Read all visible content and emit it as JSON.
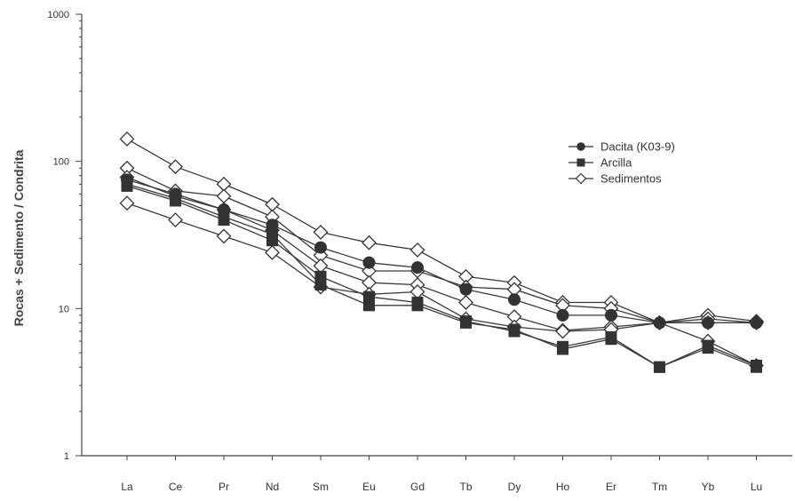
{
  "chart_data": {
    "type": "line",
    "title": "",
    "xlabel": "",
    "ylabel": "Rocas + Sedimento / Condrita",
    "yscale": "log",
    "ylim": [
      1,
      1000
    ],
    "yticks": [
      "1",
      "10",
      "100",
      "1000"
    ],
    "categories": [
      "La",
      "Ce",
      "Pr",
      "Nd",
      "Sm",
      "Eu",
      "Gd",
      "Tb",
      "Dy",
      "Ho",
      "Er",
      "Tm",
      "Yb",
      "Lu"
    ],
    "legend_position": "top-right",
    "grid": false,
    "legend": [
      {
        "label": "Dacita (K03-9)",
        "marker": "circle-filled"
      },
      {
        "label": "Arcilla",
        "marker": "square-filled"
      },
      {
        "label": "Sedimentos",
        "marker": "diamond-open"
      }
    ],
    "series": [
      {
        "group": "Dacita (K03-9)",
        "marker": "circle-filled",
        "values": [
          75,
          60,
          47,
          37,
          26,
          20.5,
          19,
          13.5,
          11.5,
          9,
          9,
          8,
          8,
          8
        ]
      },
      {
        "group": "Arcilla",
        "marker": "square-filled",
        "values": [
          70,
          56,
          42,
          32,
          14.5,
          10.5,
          10.5,
          8,
          7.2,
          5.3,
          6.2,
          4,
          5.4,
          4
        ]
      },
      {
        "group": "Arcilla",
        "marker": "square-filled",
        "values": [
          68,
          54,
          40,
          29,
          16.5,
          12,
          11,
          8.2,
          7,
          5.5,
          6.4,
          4,
          5.6,
          4.1
        ]
      },
      {
        "group": "Sedimentos",
        "marker": "diamond-open",
        "values": [
          142,
          92,
          70,
          51,
          33,
          28,
          25,
          16.5,
          15,
          11,
          11,
          8,
          9,
          8.2
        ]
      },
      {
        "group": "Sedimentos",
        "marker": "diamond-open",
        "values": [
          90,
          63,
          58,
          42,
          23,
          18,
          18,
          14,
          13.5,
          10.5,
          10,
          8,
          8.5,
          8
        ]
      },
      {
        "group": "Sedimentos",
        "marker": "diamond-open",
        "values": [
          78,
          58,
          47,
          34,
          19.5,
          15,
          14.5,
          11,
          8.8,
          7.1,
          7.5,
          8,
          8,
          8
        ]
      },
      {
        "group": "Sedimentos",
        "marker": "diamond-open",
        "values": [
          52,
          40,
          31,
          24,
          14,
          12.5,
          13,
          8.5,
          7.5,
          7,
          7.2,
          8,
          6,
          4.1
        ]
      }
    ]
  }
}
